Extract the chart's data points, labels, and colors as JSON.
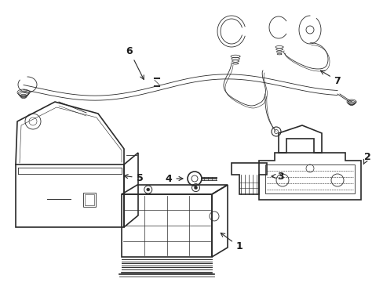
{
  "bg_color": "#ffffff",
  "line_color": "#2a2a2a",
  "label_color": "#1a1a1a",
  "figsize": [
    4.89,
    3.6
  ],
  "dpi": 100
}
